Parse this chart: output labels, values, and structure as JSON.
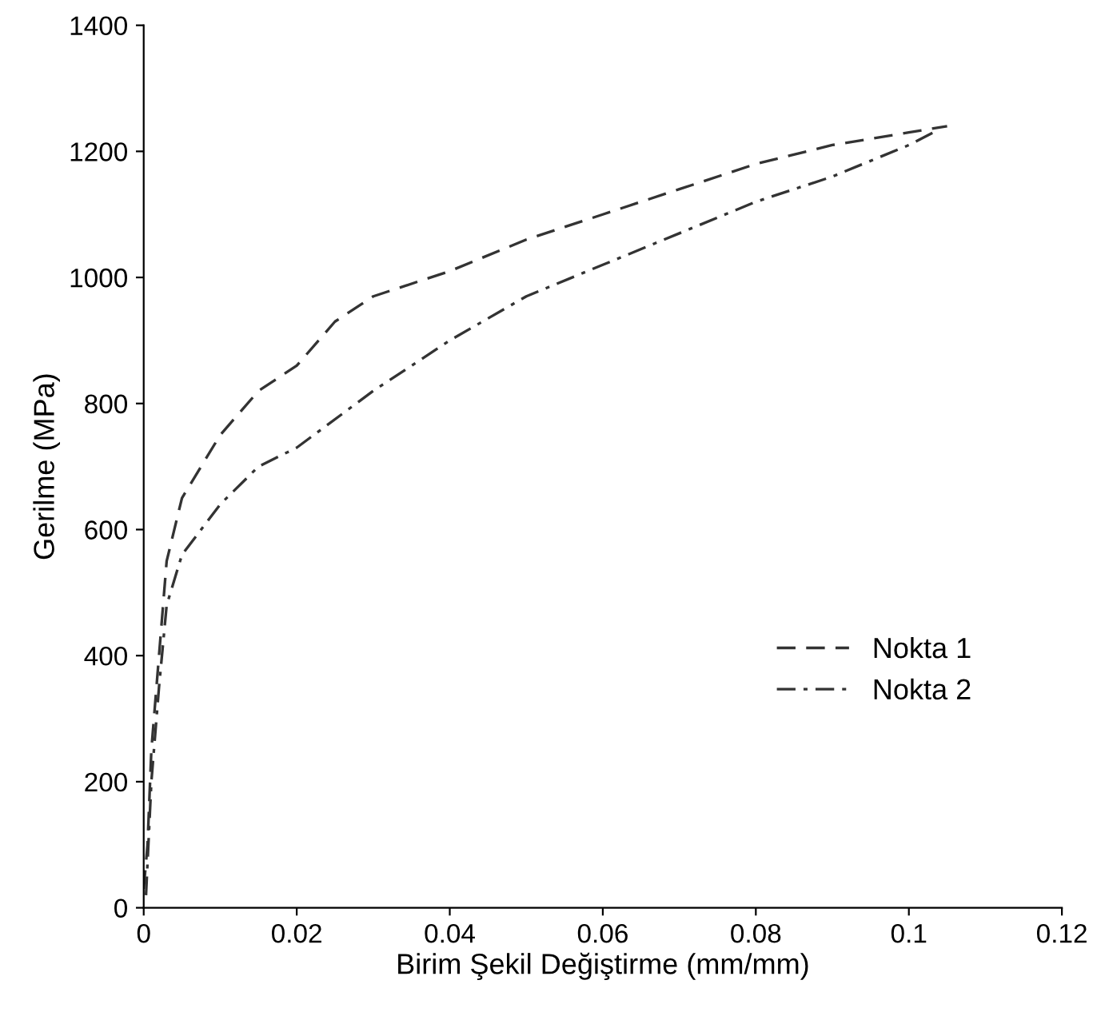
{
  "chart_data": {
    "type": "line",
    "xlabel": "Birim Şekil Değiştirme (mm/mm)",
    "ylabel": "Gerilme (MPa)",
    "xlim": [
      0,
      0.12
    ],
    "xticks": [
      0,
      0.02,
      0.04,
      0.06,
      0.08,
      0.1,
      0.12
    ],
    "ylim": [
      0,
      1400
    ],
    "yticks": [
      0,
      200,
      400,
      600,
      800,
      1000,
      1200,
      1400
    ],
    "grid": false,
    "legend": "bottom right",
    "marker": "none",
    "series": [
      {
        "name": "Nokta 1",
        "color": "#333333",
        "line_style": "dashed",
        "x": [
          0,
          0.0005,
          0.001,
          0.002,
          0.003,
          0.005,
          0.01,
          0.015,
          0.02,
          0.025,
          0.03,
          0.04,
          0.05,
          0.06,
          0.07,
          0.08,
          0.09,
          0.1,
          0.105
        ],
        "values": [
          30,
          100,
          250,
          400,
          550,
          650,
          750,
          820,
          860,
          930,
          970,
          1010,
          1060,
          1100,
          1140,
          1180,
          1210,
          1230,
          1240
        ]
      },
      {
        "name": "Nokta 2",
        "color": "#333333",
        "line_style": "dashdot",
        "x": [
          0.0003,
          0.001,
          0.002,
          0.003,
          0.005,
          0.01,
          0.015,
          0.02,
          0.03,
          0.04,
          0.05,
          0.06,
          0.07,
          0.08,
          0.09,
          0.1,
          0.104
        ],
        "values": [
          20,
          200,
          350,
          480,
          560,
          640,
          700,
          730,
          820,
          900,
          970,
          1020,
          1070,
          1120,
          1160,
          1210,
          1235
        ]
      }
    ]
  }
}
